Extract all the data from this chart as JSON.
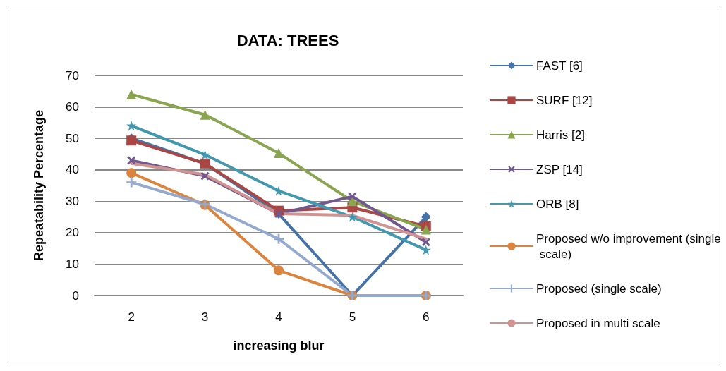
{
  "chart_data": {
    "type": "line",
    "title": "DATA: TREES",
    "xlabel": "increasing blur",
    "ylabel": "Repeatability Percentage",
    "categories": [
      "2",
      "3",
      "4",
      "5",
      "6"
    ],
    "ylim": [
      0,
      70
    ],
    "yticks": [
      0,
      10,
      20,
      30,
      40,
      50,
      60,
      70
    ],
    "grid": "y",
    "legend": "right",
    "series": [
      {
        "name": "FAST [6]",
        "color": "#4572a7",
        "marker": "diamond",
        "values": [
          50,
          42,
          26,
          0,
          25
        ]
      },
      {
        "name": "SURF [12]",
        "color": "#aa4643",
        "marker": "square",
        "values": [
          49.3,
          42,
          27,
          28,
          22
        ]
      },
      {
        "name": "Harris [2]",
        "color": "#89a54e",
        "marker": "triangle",
        "values": [
          64,
          57.5,
          45.3,
          30,
          21
        ]
      },
      {
        "name": "ZSP [14]",
        "color": "#71588f",
        "marker": "cross",
        "values": [
          43,
          38,
          26,
          31.5,
          17
        ]
      },
      {
        "name": "ORB [8]",
        "color": "#4198af",
        "marker": "star",
        "values": [
          54,
          44.8,
          33.3,
          25,
          14.5
        ]
      },
      {
        "name": "Proposed w/o improvement (single scale)",
        "color": "#db843d",
        "marker": "circle",
        "values": [
          39,
          28.8,
          8,
          0,
          0
        ]
      },
      {
        "name": "Proposed (single scale)",
        "color": "#93a9cf",
        "marker": "cross",
        "values": [
          36,
          29,
          18,
          0,
          0
        ]
      },
      {
        "name": "Proposed in multi scale",
        "color": "#d19392",
        "marker": "none",
        "values": [
          42,
          38.5,
          26,
          25.5,
          18
        ]
      }
    ]
  }
}
